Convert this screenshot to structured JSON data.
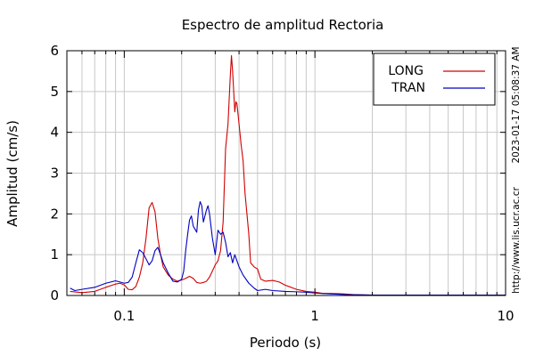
{
  "chart_data": {
    "type": "line",
    "title": "Espectro de amplitud Rectoria",
    "xlabel": "Periodo (s)",
    "ylabel": "Amplitud (cm/s)",
    "x_scale": "log",
    "xlim": [
      0.05,
      10
    ],
    "ylim": [
      0,
      6
    ],
    "x_ticks": [
      0.1,
      1,
      10
    ],
    "x_tick_labels": [
      "0.1",
      "1",
      "10"
    ],
    "y_ticks": [
      0,
      1,
      2,
      3,
      4,
      5,
      6
    ],
    "y_tick_labels": [
      "0",
      "1",
      "2",
      "3",
      "4",
      "5",
      "6"
    ],
    "grid": true,
    "legend_position": "top-right",
    "side_texts": [
      "2023-01-17 05:08:37 AM",
      "http://www.lis.ucr.ac.cr"
    ],
    "series": [
      {
        "name": "LONG",
        "color": "#d00000",
        "points": [
          [
            0.052,
            0.1
          ],
          [
            0.06,
            0.07
          ],
          [
            0.07,
            0.1
          ],
          [
            0.08,
            0.2
          ],
          [
            0.09,
            0.28
          ],
          [
            0.095,
            0.3
          ],
          [
            0.1,
            0.26
          ],
          [
            0.105,
            0.15
          ],
          [
            0.11,
            0.14
          ],
          [
            0.115,
            0.22
          ],
          [
            0.12,
            0.45
          ],
          [
            0.125,
            0.8
          ],
          [
            0.13,
            1.4
          ],
          [
            0.135,
            2.15
          ],
          [
            0.14,
            2.28
          ],
          [
            0.145,
            2.05
          ],
          [
            0.15,
            1.4
          ],
          [
            0.155,
            1.0
          ],
          [
            0.16,
            0.7
          ],
          [
            0.17,
            0.5
          ],
          [
            0.18,
            0.4
          ],
          [
            0.19,
            0.35
          ],
          [
            0.2,
            0.38
          ],
          [
            0.21,
            0.42
          ],
          [
            0.22,
            0.47
          ],
          [
            0.23,
            0.42
          ],
          [
            0.24,
            0.32
          ],
          [
            0.25,
            0.3
          ],
          [
            0.26,
            0.32
          ],
          [
            0.27,
            0.35
          ],
          [
            0.28,
            0.45
          ],
          [
            0.29,
            0.6
          ],
          [
            0.3,
            0.75
          ],
          [
            0.31,
            0.85
          ],
          [
            0.32,
            1.1
          ],
          [
            0.33,
            1.8
          ],
          [
            0.34,
            3.6
          ],
          [
            0.35,
            4.2
          ],
          [
            0.36,
            5.4
          ],
          [
            0.365,
            5.88
          ],
          [
            0.37,
            5.5
          ],
          [
            0.38,
            4.5
          ],
          [
            0.385,
            4.75
          ],
          [
            0.39,
            4.7
          ],
          [
            0.4,
            4.2
          ],
          [
            0.41,
            3.7
          ],
          [
            0.42,
            3.3
          ],
          [
            0.43,
            2.5
          ],
          [
            0.44,
            2.0
          ],
          [
            0.45,
            1.5
          ],
          [
            0.46,
            0.8
          ],
          [
            0.48,
            0.7
          ],
          [
            0.5,
            0.65
          ],
          [
            0.52,
            0.4
          ],
          [
            0.55,
            0.35
          ],
          [
            0.6,
            0.37
          ],
          [
            0.65,
            0.33
          ],
          [
            0.7,
            0.25
          ],
          [
            0.75,
            0.2
          ],
          [
            0.8,
            0.15
          ],
          [
            0.9,
            0.1
          ],
          [
            1.0,
            0.08
          ],
          [
            1.1,
            0.05
          ],
          [
            1.2,
            0.05
          ],
          [
            1.4,
            0.04
          ],
          [
            1.6,
            0.02
          ],
          [
            2.0,
            0.01
          ],
          [
            3.0,
            0.01
          ],
          [
            10,
            0.01
          ]
        ]
      },
      {
        "name": "TRAN",
        "color": "#0000c0",
        "points": [
          [
            0.052,
            0.18
          ],
          [
            0.055,
            0.12
          ],
          [
            0.06,
            0.15
          ],
          [
            0.07,
            0.2
          ],
          [
            0.08,
            0.3
          ],
          [
            0.09,
            0.36
          ],
          [
            0.095,
            0.33
          ],
          [
            0.1,
            0.3
          ],
          [
            0.105,
            0.32
          ],
          [
            0.11,
            0.45
          ],
          [
            0.115,
            0.8
          ],
          [
            0.12,
            1.12
          ],
          [
            0.125,
            1.05
          ],
          [
            0.13,
            0.9
          ],
          [
            0.135,
            0.75
          ],
          [
            0.14,
            0.85
          ],
          [
            0.145,
            1.1
          ],
          [
            0.15,
            1.18
          ],
          [
            0.155,
            1.0
          ],
          [
            0.16,
            0.8
          ],
          [
            0.17,
            0.55
          ],
          [
            0.18,
            0.35
          ],
          [
            0.19,
            0.33
          ],
          [
            0.2,
            0.4
          ],
          [
            0.205,
            0.6
          ],
          [
            0.21,
            1.1
          ],
          [
            0.215,
            1.5
          ],
          [
            0.22,
            1.85
          ],
          [
            0.225,
            1.95
          ],
          [
            0.23,
            1.7
          ],
          [
            0.24,
            1.55
          ],
          [
            0.245,
            2.1
          ],
          [
            0.25,
            2.3
          ],
          [
            0.255,
            2.2
          ],
          [
            0.26,
            1.8
          ],
          [
            0.27,
            2.1
          ],
          [
            0.275,
            2.2
          ],
          [
            0.28,
            2.0
          ],
          [
            0.29,
            1.4
          ],
          [
            0.3,
            1.0
          ],
          [
            0.31,
            1.6
          ],
          [
            0.32,
            1.5
          ],
          [
            0.33,
            1.55
          ],
          [
            0.34,
            1.3
          ],
          [
            0.35,
            0.95
          ],
          [
            0.36,
            1.05
          ],
          [
            0.37,
            0.8
          ],
          [
            0.38,
            1.0
          ],
          [
            0.39,
            0.85
          ],
          [
            0.4,
            0.7
          ],
          [
            0.42,
            0.5
          ],
          [
            0.45,
            0.3
          ],
          [
            0.48,
            0.18
          ],
          [
            0.5,
            0.12
          ],
          [
            0.55,
            0.15
          ],
          [
            0.6,
            0.12
          ],
          [
            0.7,
            0.1
          ],
          [
            0.8,
            0.09
          ],
          [
            0.9,
            0.08
          ],
          [
            1.0,
            0.06
          ],
          [
            1.2,
            0.04
          ],
          [
            1.5,
            0.02
          ],
          [
            2.0,
            0.01
          ],
          [
            10,
            0.01
          ]
        ]
      }
    ]
  }
}
